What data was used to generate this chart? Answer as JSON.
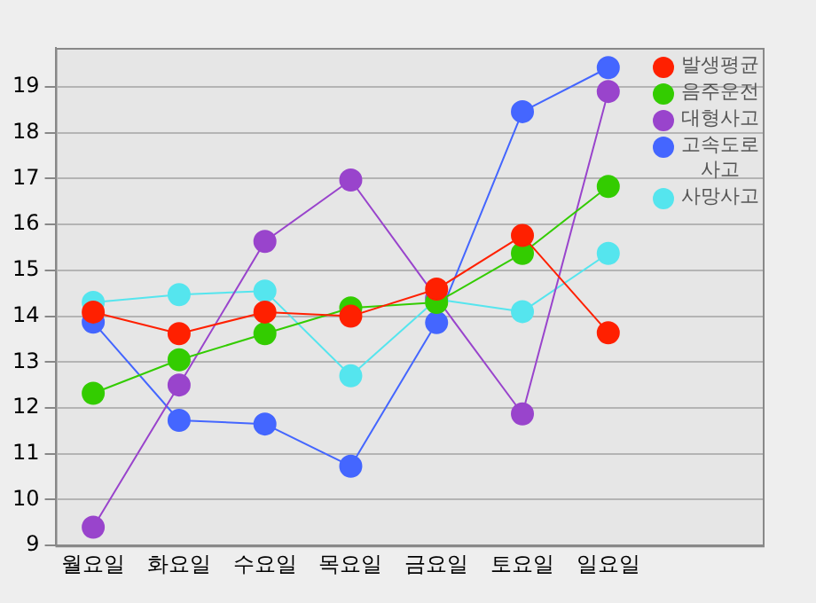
{
  "chart_data": {
    "type": "line",
    "categories": [
      "월요일",
      "화요일",
      "수요일",
      "목요일",
      "금요일",
      "토요일",
      "일요일"
    ],
    "series": [
      {
        "name": "발생평균",
        "color": "#ff2000",
        "values": [
          14.09,
          13.62,
          14.09,
          14.0,
          14.59,
          15.76,
          13.64
        ]
      },
      {
        "name": "음주운전",
        "color": "#33cc00",
        "values": [
          12.32,
          13.05,
          13.62,
          14.18,
          14.3,
          15.37,
          16.83
        ]
      },
      {
        "name": "대형사고",
        "color": "#9944cc",
        "values": [
          9.4,
          12.5,
          15.63,
          16.97,
          14.4,
          11.87,
          18.9
        ]
      },
      {
        "name": "고속도로\n사고",
        "color": "#4466ff",
        "values": [
          13.87,
          11.73,
          11.65,
          10.73,
          13.86,
          18.46,
          19.42
        ]
      },
      {
        "name": "사망사고",
        "color": "#55e5ee",
        "values": [
          14.3,
          14.47,
          14.55,
          12.7,
          14.37,
          14.1,
          15.37
        ]
      }
    ],
    "ylim": [
      9,
      19.85
    ],
    "yticks": [
      9,
      10,
      11,
      12,
      13,
      14,
      15,
      16,
      17,
      18,
      19
    ],
    "grid": "y",
    "legend": "top right",
    "marker": "circle",
    "line_style": "solid"
  }
}
